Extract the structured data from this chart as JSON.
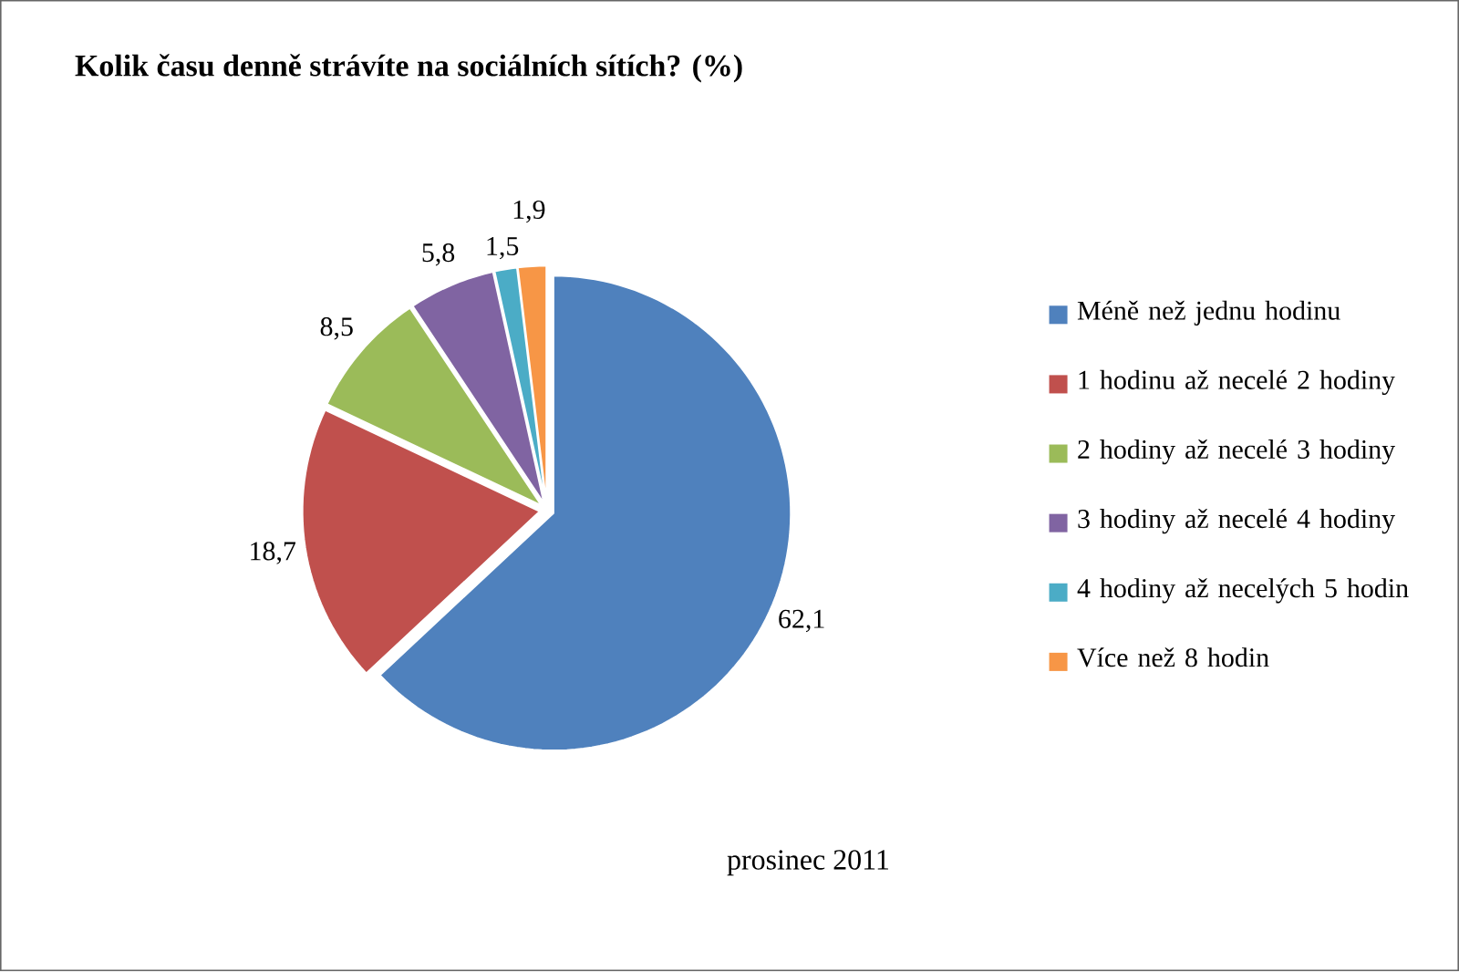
{
  "chart_data": {
    "type": "pie",
    "title": "Kolik času denně strávíte na sociálních sítích? (%)",
    "categories": [
      "Méně než jednu hodinu",
      "1 hodinu až necelé 2 hodiny",
      "2 hodiny až necelé 3 hodiny",
      "3 hodiny až necelé 4 hodiny",
      "4 hodiny až necelých 5 hodin",
      "Více než 8 hodin"
    ],
    "values": [
      62.1,
      18.7,
      8.5,
      5.8,
      1.5,
      1.9
    ],
    "value_labels": [
      "62,1",
      "18,7",
      "8,5",
      "5,8",
      "1,5",
      "1,9"
    ],
    "colors": [
      "#4f81bd",
      "#c0504d",
      "#9bbb59",
      "#8064a2",
      "#4bacc6",
      "#f79646"
    ],
    "legend": "right",
    "annotations": [
      "prosinec 2011"
    ]
  }
}
